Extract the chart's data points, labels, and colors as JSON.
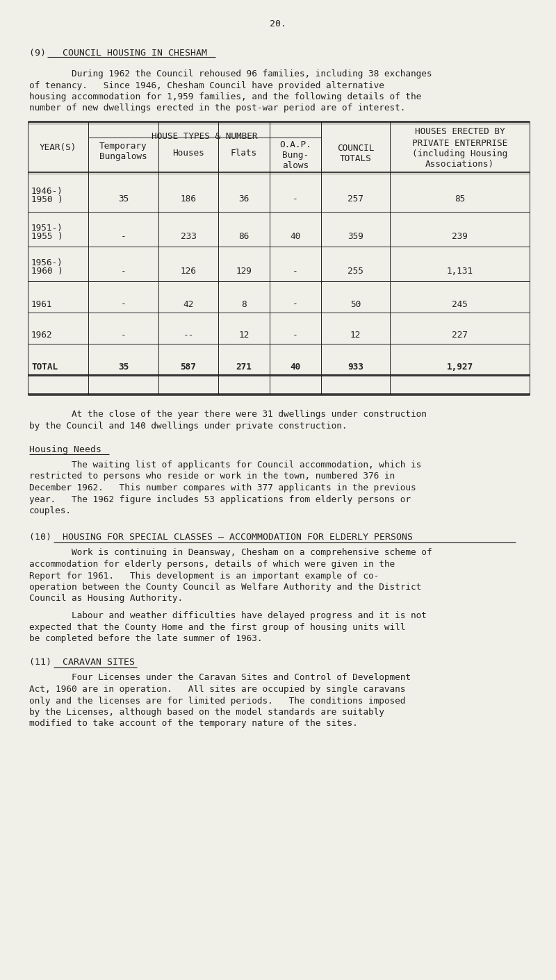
{
  "page_number": "20.",
  "bg_color": "#f0efe8",
  "text_color": "#222222",
  "section9_heading": "(9)   COUNCIL HOUSING IN CHESHAM",
  "section9_para1": "        During 1962 the Council rehoused 96 families, including 38 exchanges",
  "section9_para2": "of tenancy.   Since 1946, Chesham Council have provided alternative",
  "section9_para3": "housing accommodation for 1,959 families, and the following details of the",
  "section9_para4": "number of new dwellings erected in the post-war period are of interest.",
  "post_table_para1": "        At the close of the year there were 31 dwellings under construction",
  "post_table_para2": "by the Council and 140 dwellings under private construction.",
  "housing_needs_heading": "Housing Needs",
  "housing_needs_p1": "        The waiting list of applicants for Council accommodation, which is",
  "housing_needs_p2": "restricted to persons who reside or work in the town, numbered 376 in",
  "housing_needs_p3": "December 1962.   This number compares with 377 applicants in the previous",
  "housing_needs_p4": "year.   The 1962 figure includes 53 applications from elderly persons or",
  "housing_needs_p5": "couples.",
  "section10_heading": "(10)  HOUSING FOR SPECIAL CLASSES – ACCOMMODATION FOR ELDERLY PERSONS",
  "section10_p1": "        Work is continuing in Deansway, Chesham on a comprehensive scheme of",
  "section10_p2": "accommodation for elderly persons, details of which were given in the",
  "section10_p3": "Report for 1961.   This development is an important example of co-",
  "section10_p4": "operation between the County Council as Welfare Authority and the District",
  "section10_p5": "Council as Housing Authority.",
  "section10_p6": "        Labour and weather difficulties have delayed progress and it is not",
  "section10_p7": "expected that the County Home and the first group of housing units will",
  "section10_p8": "be completed before the late summer of 1963.",
  "section11_heading": "(11)  CARAVAN SITES",
  "section11_p1": "        Four Licenses under the Caravan Sites and Control of Development",
  "section11_p2": "Act, 1960 are in operation.   All sites are occupied by single caravans",
  "section11_p3": "only and the licenses are for limited periods.   The conditions imposed",
  "section11_p4": "by the Licenses, although based on the model standards are suitably",
  "section11_p5": "modified to take account of the temporary nature of the sites.",
  "table_rows": [
    [
      "1946-)",
      "1950 )",
      "35",
      "186",
      "36",
      "-",
      "257",
      "85"
    ],
    [
      "1951-)",
      "1955 )",
      "-",
      "233",
      "86",
      "40",
      "359",
      "239"
    ],
    [
      "1956-)",
      "1960 )",
      "-",
      "126",
      "129",
      "-",
      "255",
      "1,131"
    ],
    [
      "1961",
      "",
      "-",
      "42",
      "8",
      "-",
      "50",
      "245"
    ],
    [
      "1962",
      "",
      "-",
      "--",
      "12",
      "-",
      "12",
      "227"
    ],
    [
      "TOTAL",
      "",
      "35",
      "587",
      "271",
      "40",
      "933",
      "1,927"
    ]
  ]
}
